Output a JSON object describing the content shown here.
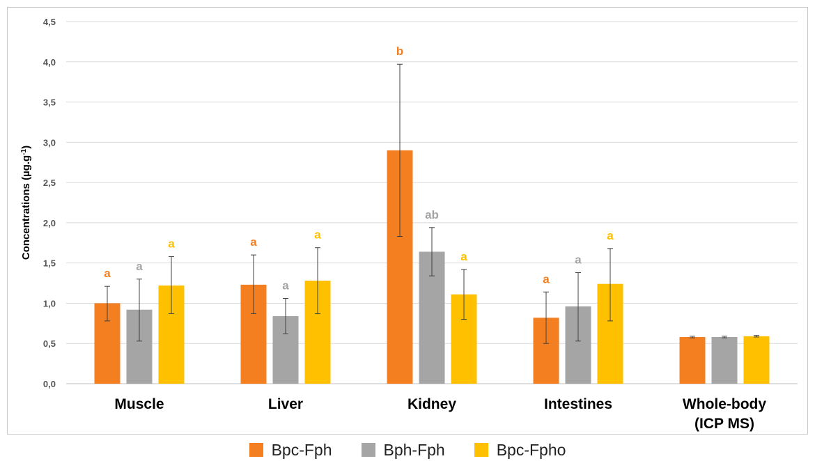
{
  "chart_data": {
    "type": "bar",
    "ylabel": "Concentrations (µg.g",
    "ylabel_sup": "-1",
    "ylabel_end": ")",
    "ylim": [
      0,
      4.5
    ],
    "yticks": [
      "0,0",
      "0,5",
      "1,0",
      "1,5",
      "2,0",
      "2,5",
      "3,0",
      "3,5",
      "4,0",
      "4,5"
    ],
    "ytick_values": [
      0,
      0.5,
      1,
      1.5,
      2,
      2.5,
      3,
      3.5,
      4,
      4.5
    ],
    "categories": [
      "Muscle",
      "Liver",
      "Kidney",
      "Intestines",
      "Whole-body\n(ICP MS)"
    ],
    "grid": true,
    "legend_position": "bottom",
    "series": [
      {
        "name": "Bpc-Fph",
        "color": "#f47f20",
        "values": [
          1.0,
          1.23,
          2.9,
          0.82,
          0.58
        ],
        "err_low": [
          0.78,
          0.87,
          1.83,
          0.5,
          0.57
        ],
        "err_high": [
          1.21,
          1.6,
          3.97,
          1.14,
          0.59
        ],
        "labels": [
          "a",
          "a",
          "b",
          "a",
          ""
        ]
      },
      {
        "name": "Bph-Fph",
        "color": "#a5a5a5",
        "values": [
          0.92,
          0.84,
          1.64,
          0.96,
          0.58
        ],
        "err_low": [
          0.53,
          0.62,
          1.34,
          0.53,
          0.57
        ],
        "err_high": [
          1.3,
          1.06,
          1.94,
          1.38,
          0.59
        ],
        "labels": [
          "a",
          "a",
          "ab",
          "a",
          ""
        ]
      },
      {
        "name": "Bpc-Fpho",
        "color": "#ffc000",
        "values": [
          1.22,
          1.28,
          1.11,
          1.24,
          0.59
        ],
        "err_low": [
          0.87,
          0.87,
          0.8,
          0.78,
          0.58
        ],
        "err_high": [
          1.58,
          1.69,
          1.42,
          1.68,
          0.6
        ],
        "labels": [
          "a",
          "a",
          "a",
          "a",
          ""
        ]
      }
    ]
  }
}
